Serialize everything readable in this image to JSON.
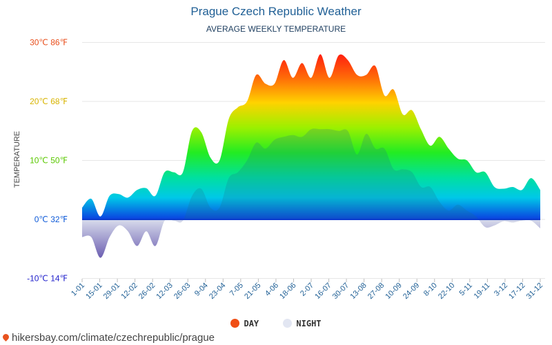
{
  "title": "Prague Czech Republic Weather",
  "subtitle": "AVERAGE WEEKLY TEMPERATURE",
  "ylabel": "TEMPERATURE",
  "legend": {
    "day": "DAY",
    "night": "NIGHT"
  },
  "footer": "hikersbay.com/climate/czechrepublic/prague",
  "colors": {
    "day_legend": "#f04e14",
    "night_legend": "#e2e6f2",
    "night_fill": "#7a7ab8"
  },
  "chart_data": {
    "type": "area",
    "title": "Prague Czech Republic Weather",
    "subtitle": "AVERAGE WEEKLY TEMPERATURE",
    "ylabel": "TEMPERATURE",
    "ylim": [
      -10,
      30
    ],
    "y_ticks": [
      {
        "value": 30,
        "label": "30℃ 86℉",
        "color": "#e84e1b"
      },
      {
        "value": 20,
        "label": "20℃ 68℉",
        "color": "#d8b400"
      },
      {
        "value": 10,
        "label": "10℃ 50℉",
        "color": "#5ac800"
      },
      {
        "value": 0,
        "label": "0℃ 32℉",
        "color": "#0e5ad8"
      },
      {
        "value": -10,
        "label": "-10℃ 14℉",
        "color": "#2222cc"
      }
    ],
    "x_labels": [
      "1-01",
      "15-01",
      "29-01",
      "12-02",
      "26-02",
      "12-03",
      "26-03",
      "9-04",
      "23-04",
      "7-05",
      "21-05",
      "4-06",
      "18-06",
      "2-07",
      "16-07",
      "30-07",
      "13-08",
      "27-08",
      "10-09",
      "24-09",
      "8-10",
      "22-10",
      "5-11",
      "19-11",
      "3-12",
      "17-12",
      "31-12"
    ],
    "series": [
      {
        "name": "DAY",
        "values": [
          2,
          3.5,
          0.5,
          4,
          4.3,
          3.7,
          5,
          5.3,
          4,
          8,
          8,
          8,
          15,
          14.8,
          10.5,
          10,
          17,
          19,
          20,
          24.5,
          23,
          23,
          27,
          24,
          26.5,
          24,
          28,
          24,
          27.8,
          27,
          24.5,
          24.5,
          26,
          21,
          22,
          17.8,
          18.5,
          15.2,
          12.5,
          14,
          12,
          10.3,
          10,
          8,
          8,
          5.5,
          5.2,
          5.5,
          5,
          7,
          5
        ]
      },
      {
        "name": "NIGHT",
        "values": [
          -3,
          -3,
          -6.5,
          -3,
          -1,
          -2,
          -4.5,
          -2,
          -4.5,
          -0.2,
          -0.2,
          -0.2,
          4,
          5.2,
          2,
          2,
          7,
          8,
          10,
          13,
          12,
          13.5,
          14,
          14.3,
          14,
          15.3,
          15.3,
          15.3,
          15,
          15,
          11,
          14.5,
          12,
          12,
          8.5,
          8.5,
          8,
          5.5,
          5.5,
          3,
          1.5,
          2.5,
          1.5,
          0.5,
          -1.3,
          -1,
          -0.3,
          -0.5,
          -0.2,
          -0.2,
          -1.5
        ]
      }
    ],
    "grid": true,
    "legend_position": "bottom"
  }
}
